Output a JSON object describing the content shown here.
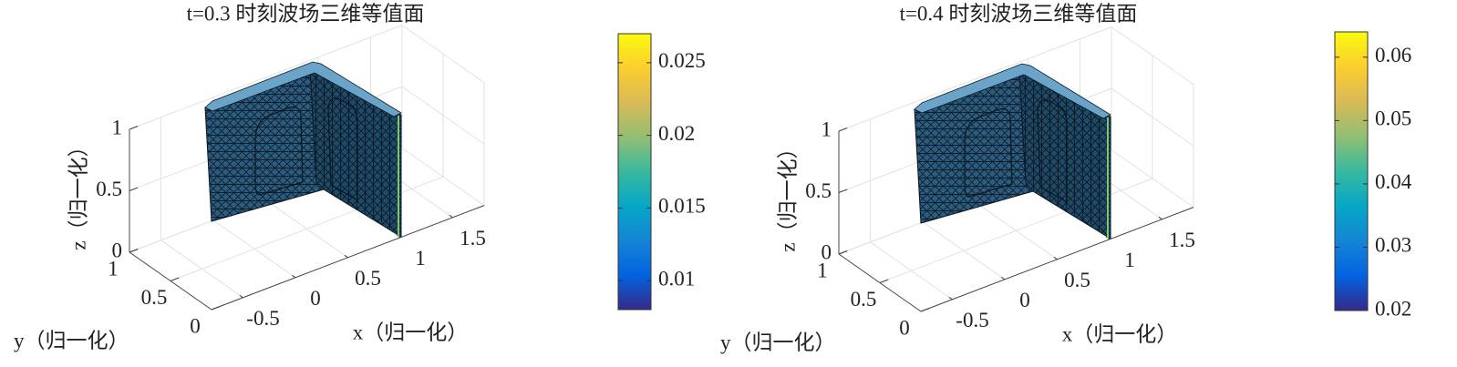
{
  "chart_data": [
    {
      "type": "surface",
      "title": "t=0.3 时刻波场三维等值面",
      "xlabel": "x（归一化）",
      "ylabel": "y（归一化）",
      "zlabel": "z（归一化）",
      "xlim": [
        -0.8,
        1.8
      ],
      "ylim": [
        0,
        1
      ],
      "zlim": [
        0,
        1
      ],
      "xticks": [
        -0.5,
        0,
        0.5,
        1,
        1.5
      ],
      "yticks": [
        0,
        0.5,
        1
      ],
      "zticks": [
        0,
        0.5,
        1
      ],
      "grid": true,
      "colorbar": {
        "clim": [
          0.008,
          0.027
        ],
        "ticks": [
          0.01,
          0.015,
          0.02,
          0.025
        ],
        "colormap": "parula"
      }
    },
    {
      "type": "surface",
      "title": "t=0.4 时刻波场三维等值面",
      "xlabel": "x（归一化）",
      "ylabel": "y（归一化）",
      "zlabel": "z（归一化）",
      "xlim": [
        -0.8,
        1.8
      ],
      "ylim": [
        0,
        1
      ],
      "zlim": [
        0,
        1
      ],
      "xticks": [
        -0.5,
        0,
        0.5,
        1,
        1.5
      ],
      "yticks": [
        0,
        0.5,
        1
      ],
      "zticks": [
        0,
        0.5,
        1
      ],
      "grid": true,
      "colorbar": {
        "clim": [
          0.02,
          0.064
        ],
        "ticks": [
          0.02,
          0.03,
          0.04,
          0.05,
          0.06
        ],
        "colormap": "parula"
      }
    }
  ]
}
